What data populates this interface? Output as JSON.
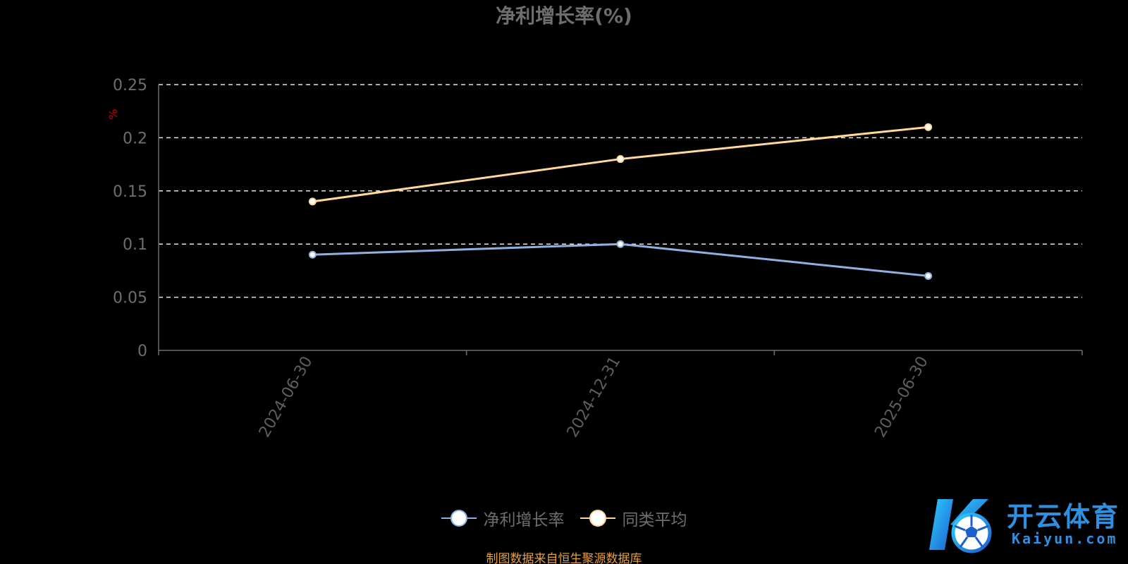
{
  "chart_data": {
    "type": "line",
    "title": "净利增长率(%)",
    "ylabel": "%",
    "xlabel": "",
    "categories": [
      "2024-06-30",
      "2024-12-31",
      "2025-06-30"
    ],
    "series": [
      {
        "name": "净利增长率",
        "values": [
          0.09,
          0.1,
          0.07
        ],
        "color": "#8fb0e0"
      },
      {
        "name": "同类平均",
        "values": [
          0.14,
          0.18,
          0.21
        ],
        "color": "#ffd89a"
      }
    ],
    "ylim": [
      0,
      0.25
    ],
    "yticks": [
      "0",
      "0.05",
      "0.1",
      "0.15",
      "0.2",
      "0.25"
    ],
    "grid": true,
    "legend_position": "bottom"
  },
  "source_note": "制图数据来自恒生聚源数据库",
  "watermark": {
    "text_cn": "开云体育",
    "text_en": "Kaiyun.com",
    "color": "#2f8fe0"
  }
}
